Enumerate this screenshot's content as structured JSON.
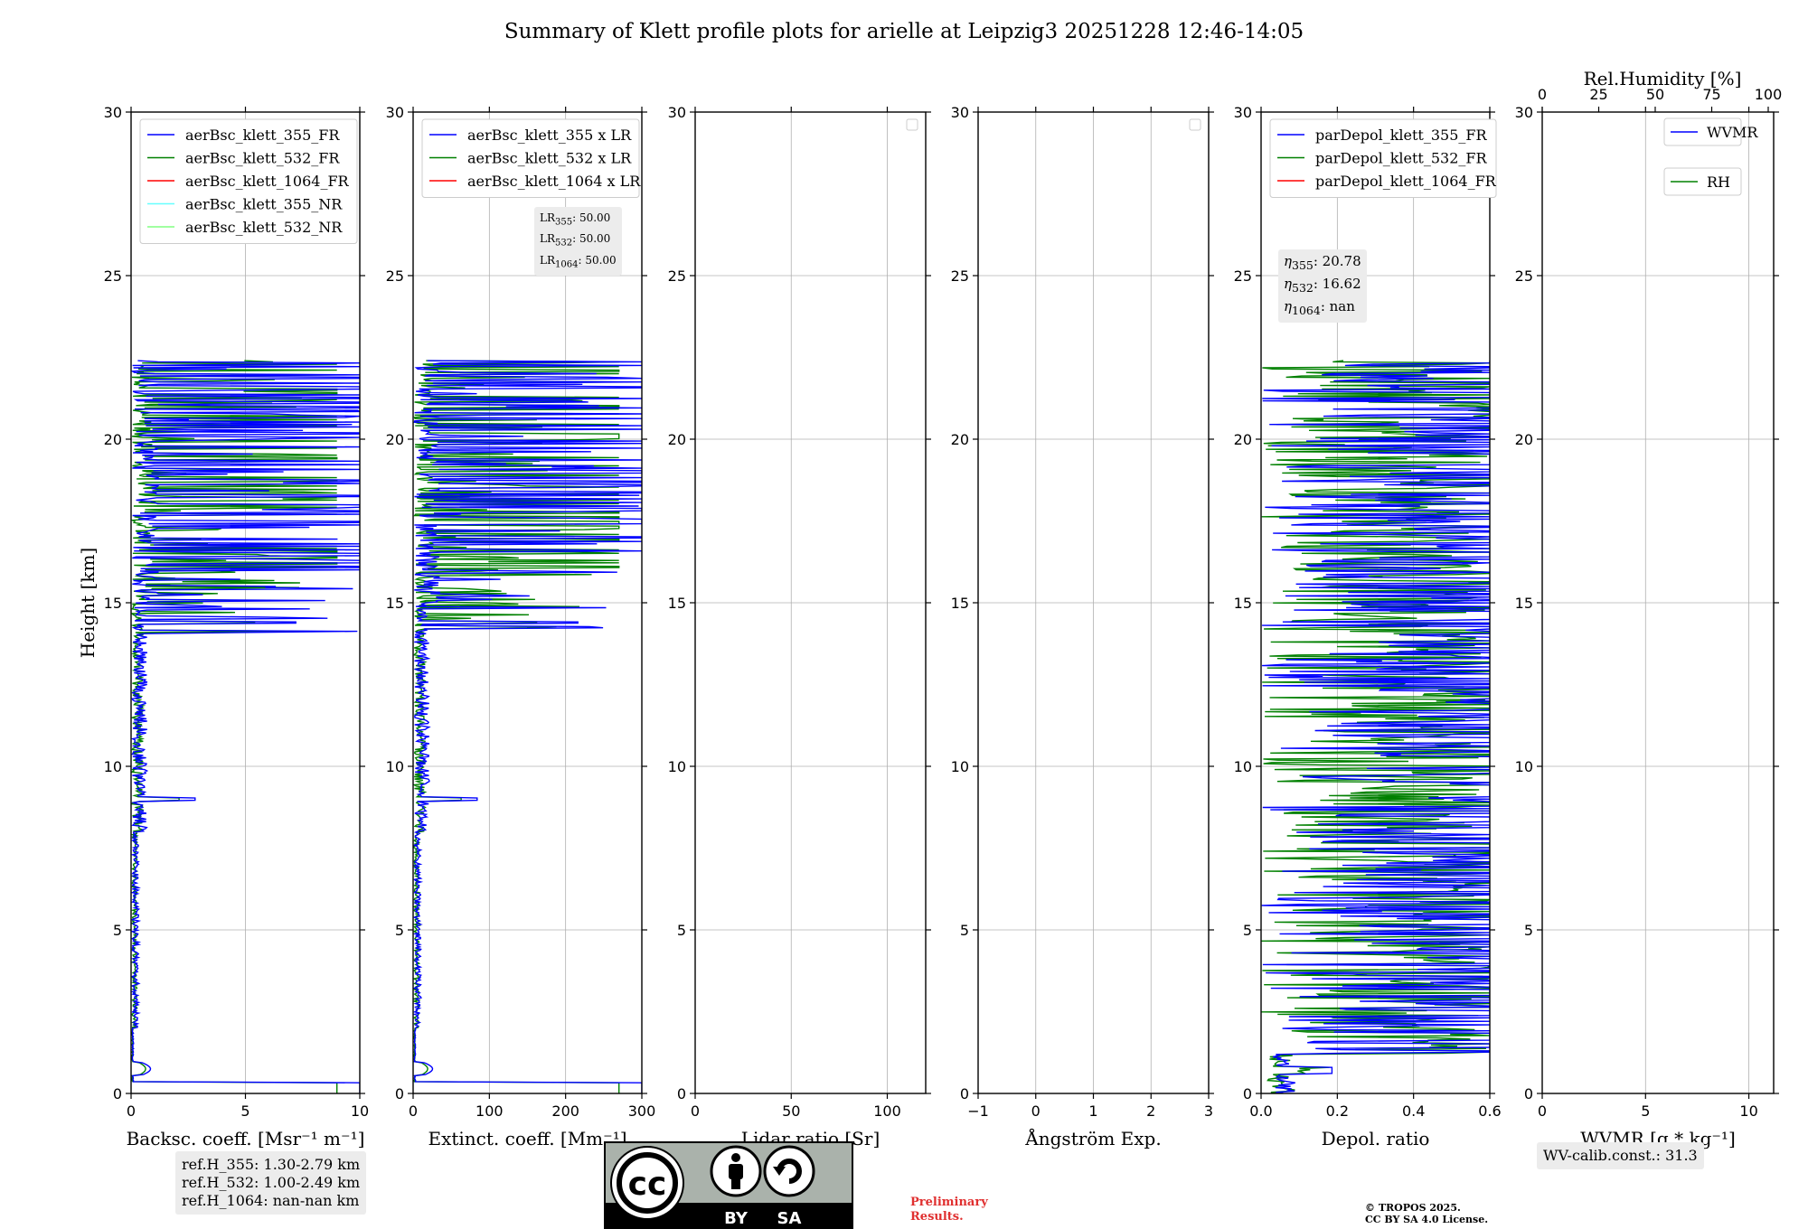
{
  "title": "Summary of Klett profile plots for arielle at Leipzig3 20251228 12:46-14:05",
  "chart_data": [
    {
      "type": "line",
      "name": "backscatter",
      "xlabel": "Backsc. coeff. [Msr⁻¹ m⁻¹]",
      "ylabel": "Height [km]",
      "xlim": [
        0,
        10
      ],
      "ylim": [
        0,
        30
      ],
      "xticks": [
        "0",
        "5",
        "10"
      ],
      "yticks": [
        "0",
        "5",
        "10",
        "15",
        "20",
        "25",
        "30"
      ],
      "legend": [
        {
          "label": "aerBsc_klett_355_FR",
          "color": "#0000ff"
        },
        {
          "label": "aerBsc_klett_532_FR",
          "color": "#008000"
        },
        {
          "label": "aerBsc_klett_1064_FR",
          "color": "#ff0000"
        },
        {
          "label": "aerBsc_klett_355_NR",
          "color": "#66ffff"
        },
        {
          "label": "aerBsc_klett_532_NR",
          "color": "#80ff80"
        }
      ],
      "notes": [
        "ref.H_355: 1.30-2.79 km",
        "ref.H_532: 1.00-2.49 km",
        "ref.H_1064: nan-nan km"
      ]
    },
    {
      "type": "line",
      "name": "extinction",
      "xlabel": "Extinct. coeff. [Mm⁻¹]",
      "xlim": [
        0,
        300
      ],
      "ylim": [
        0,
        30
      ],
      "xticks": [
        "0",
        "100",
        "200",
        "300"
      ],
      "yticks": [
        "0",
        "5",
        "10",
        "15",
        "20",
        "25",
        "30"
      ],
      "legend": [
        {
          "label": "aerBsc_klett_355 x LR",
          "color": "#0000ff"
        },
        {
          "label": "aerBsc_klett_532 x LR",
          "color": "#008000"
        },
        {
          "label": "aerBsc_klett_1064 x LR",
          "color": "#ff0000"
        }
      ],
      "lidar_ratios": [
        {
          "label": "LR",
          "sub": "355",
          "value": ": 50.00"
        },
        {
          "label": "LR",
          "sub": "532",
          "value": ": 50.00"
        },
        {
          "label": "LR",
          "sub": "1064",
          "value": ": 50.00"
        }
      ]
    },
    {
      "type": "line",
      "name": "lidar-ratio",
      "xlabel": "Lidar ratio [Sr]",
      "xlim": [
        0,
        120
      ],
      "ylim": [
        0,
        30
      ],
      "xticks": [
        "0",
        "50",
        "100"
      ],
      "yticks": [
        "0",
        "5",
        "10",
        "15",
        "20",
        "25",
        "30"
      ],
      "legend": []
    },
    {
      "type": "line",
      "name": "angstrom",
      "xlabel": "Ångström Exp.",
      "xlim": [
        -1,
        3
      ],
      "ylim": [
        0,
        30
      ],
      "xticks": [
        "−1",
        "0",
        "1",
        "2",
        "3"
      ],
      "yticks": [
        "0",
        "5",
        "10",
        "15",
        "20",
        "25",
        "30"
      ],
      "legend": []
    },
    {
      "type": "line",
      "name": "depolarization",
      "xlabel": "Depol. ratio",
      "xlim": [
        0,
        0.6
      ],
      "ylim": [
        0,
        30
      ],
      "xticks": [
        "0.0",
        "0.2",
        "0.4",
        "0.6"
      ],
      "yticks": [
        "0",
        "5",
        "10",
        "15",
        "20",
        "25",
        "30"
      ],
      "legend": [
        {
          "label": "parDepol_klett_355_FR",
          "color": "#0000ff"
        },
        {
          "label": "parDepol_klett_532_FR",
          "color": "#008000"
        },
        {
          "label": "parDepol_klett_1064_FR",
          "color": "#ff0000"
        }
      ],
      "eta": [
        {
          "sub": "355",
          "value": ": 20.78"
        },
        {
          "sub": "532",
          "value": ": 16.62"
        },
        {
          "sub": "1064",
          "value": ": nan"
        }
      ]
    },
    {
      "type": "line",
      "name": "water-vapor",
      "xlabel": "WVMR [g * kg⁻¹]",
      "top_xlabel": "Rel.Humidity [%]",
      "xlim": [
        0,
        11.2
      ],
      "ylim": [
        0,
        30
      ],
      "xticks": [
        "0",
        "5",
        "10"
      ],
      "top_xticks": [
        "0",
        "25",
        "50",
        "75",
        "100"
      ],
      "yticks": [
        "0",
        "5",
        "10",
        "15",
        "20",
        "25",
        "30"
      ],
      "legend": [
        {
          "label": "WVMR",
          "color": "#0000ff"
        },
        {
          "label": "RH",
          "color": "#008000"
        }
      ],
      "notes": [
        "WV-calib.const.: 31.3"
      ]
    }
  ],
  "footer": {
    "license_badge": [
      "BY",
      "SA"
    ],
    "preliminary": [
      "Preliminary",
      "Results."
    ],
    "copyright": [
      "© TROPOS 2025.",
      "CC BY SA 4.0 License."
    ]
  }
}
